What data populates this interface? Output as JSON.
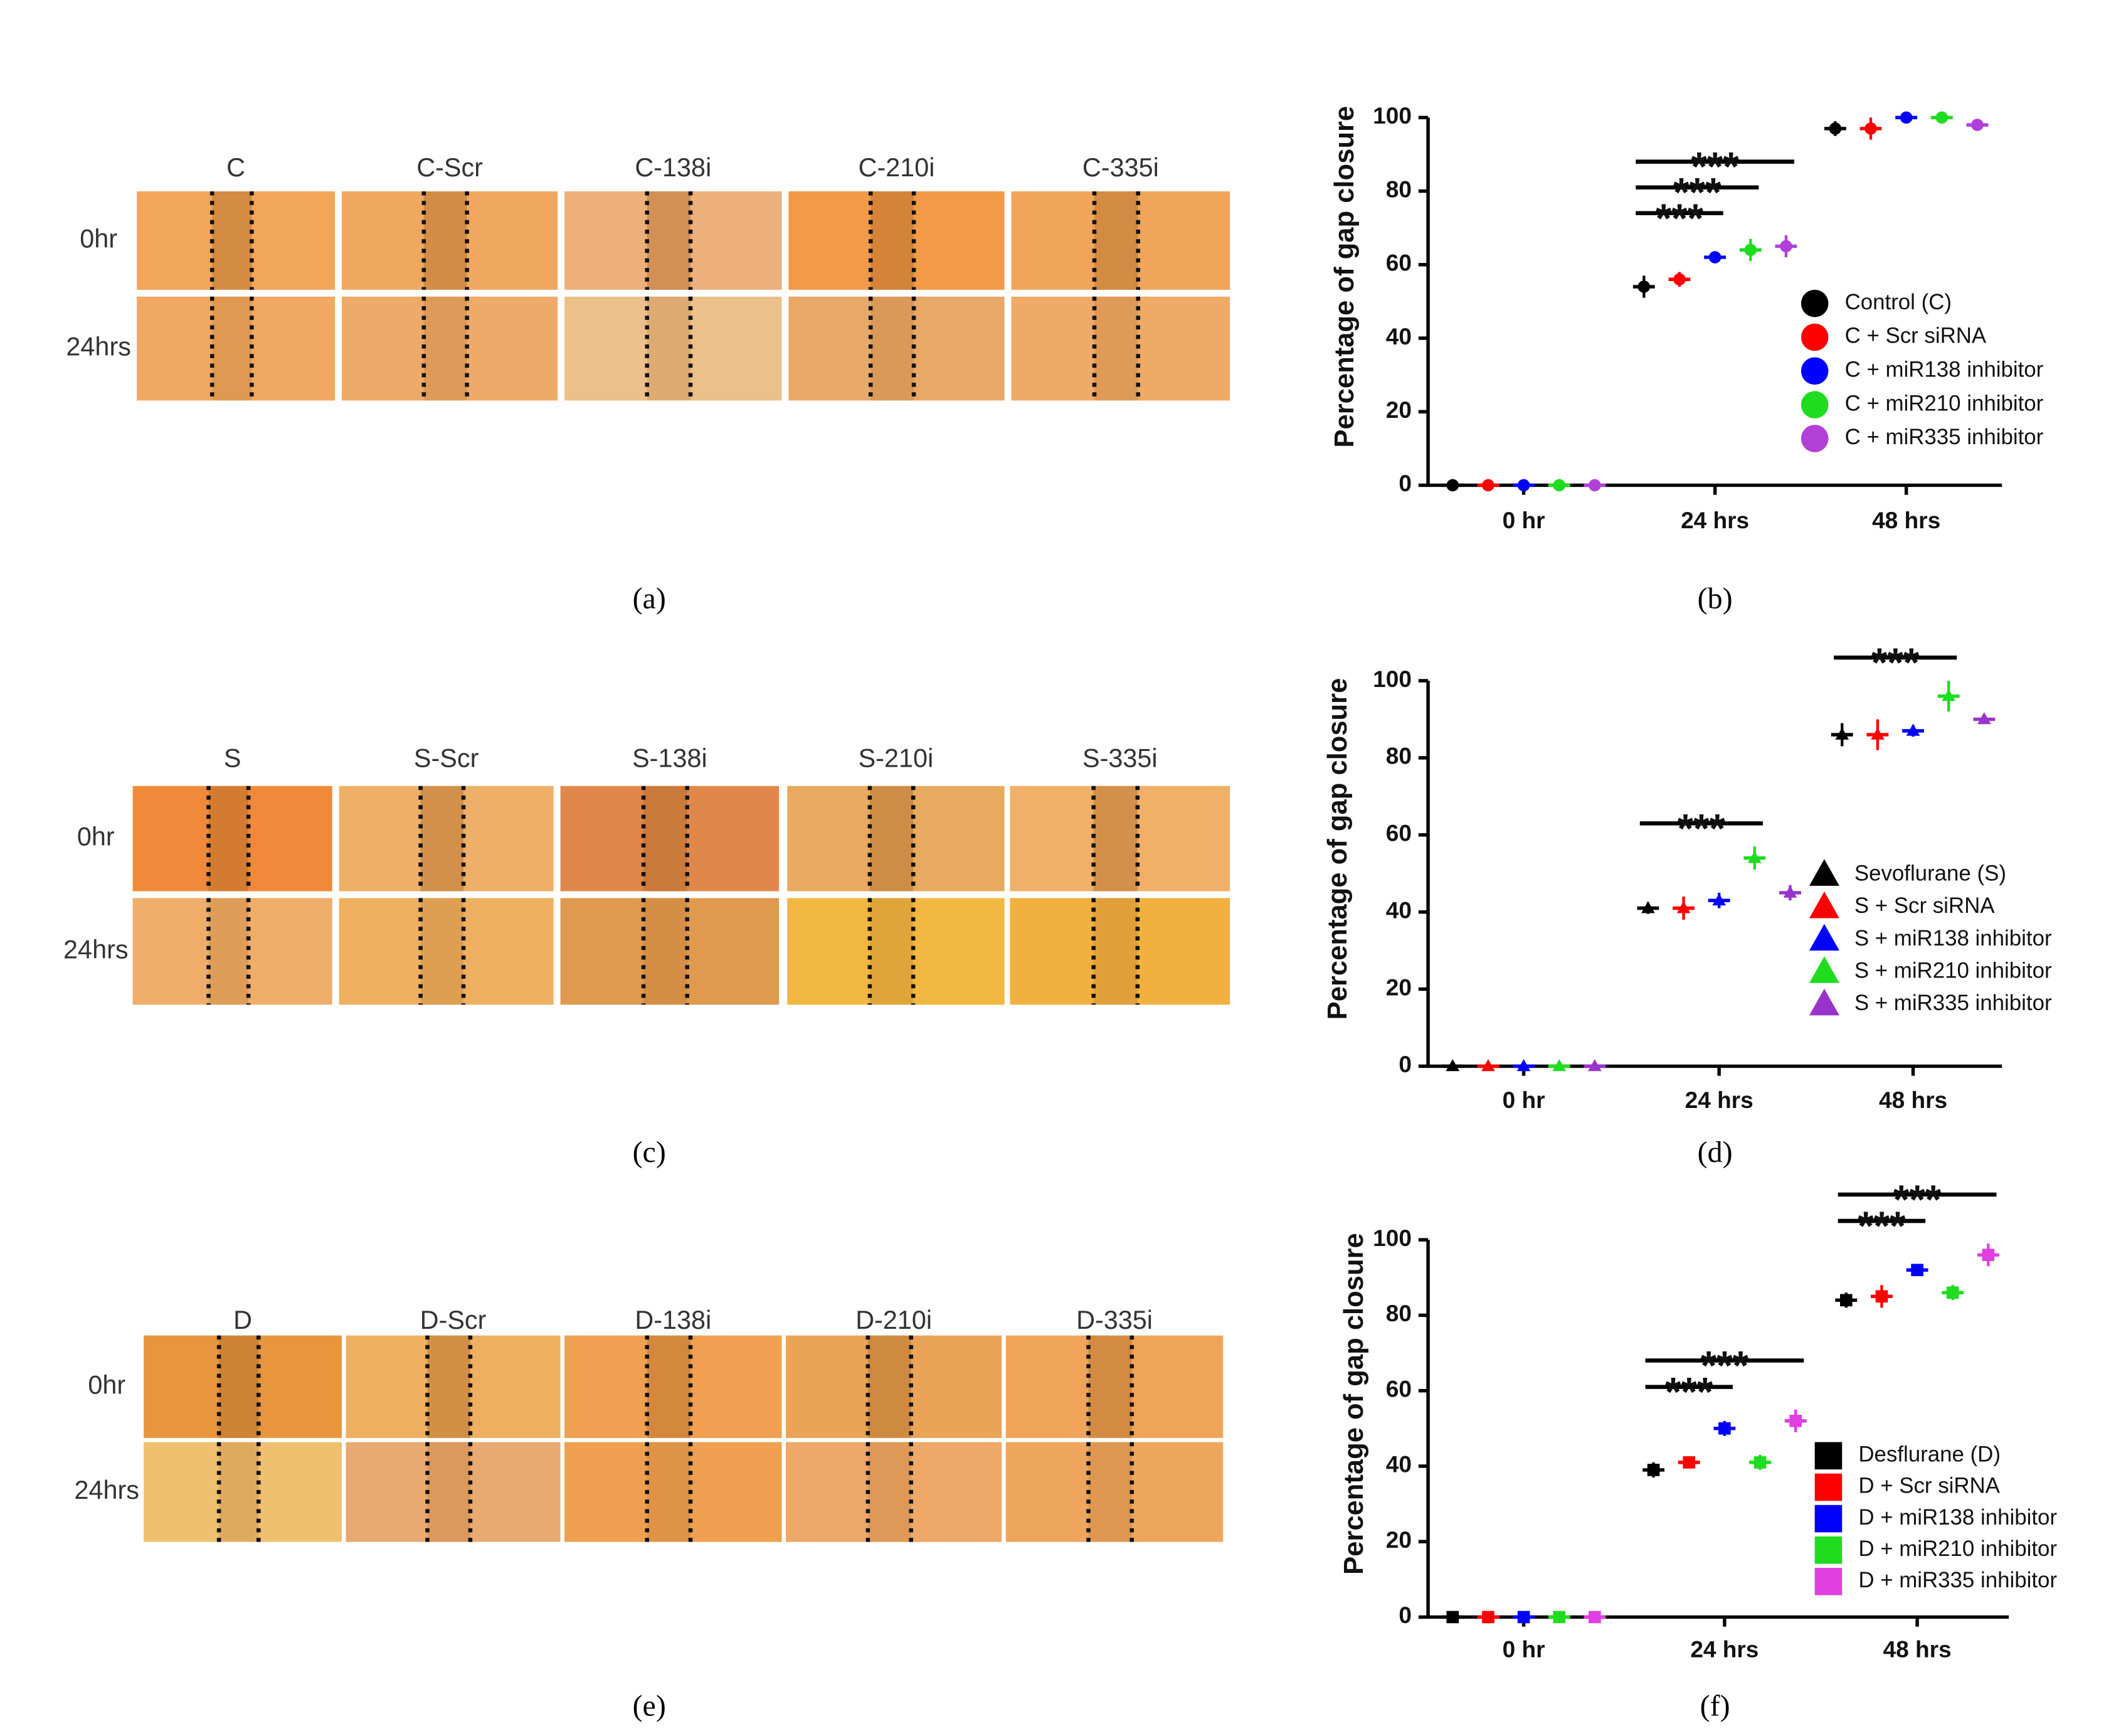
{
  "image_panels": [
    {
      "panel_label": "(a)",
      "columns": [
        "C",
        "C-Scr",
        "C-138i",
        "C-210i",
        "C-335i"
      ],
      "rows": [
        "0hr",
        "24hrs"
      ]
    },
    {
      "panel_label": "(c)",
      "columns": [
        "S",
        "S-Scr",
        "S-138i",
        "S-210i",
        "S-335i"
      ],
      "rows": [
        "0hr",
        "24hrs"
      ]
    },
    {
      "panel_label": "(e)",
      "columns": [
        "D",
        "D-Scr",
        "D-138i",
        "D-210i",
        "D-335i"
      ],
      "rows": [
        "0hr",
        "24hrs"
      ]
    }
  ],
  "chart_data": [
    {
      "type": "scatter",
      "panel_label": "(b)",
      "marker": "circle",
      "y_label": "Percentage of gap closure",
      "categories": [
        "0 hr",
        "24 hrs",
        "48 hrs"
      ],
      "ylim": [
        0,
        100
      ],
      "yticks": [
        0,
        20,
        40,
        60,
        80,
        100
      ],
      "series": [
        {
          "name": "Control (C)",
          "color": "#000000",
          "values": [
            0,
            54,
            97
          ],
          "errors": [
            0,
            3,
            2
          ]
        },
        {
          "name": "C + Scr siRNA",
          "color": "#ff0000",
          "values": [
            0,
            56,
            97
          ],
          "errors": [
            0,
            2,
            3
          ]
        },
        {
          "name": "C + miR138  inhibitor",
          "color": "#0000ff",
          "values": [
            0,
            62,
            100
          ],
          "errors": [
            0,
            1,
            0.5
          ]
        },
        {
          "name": "C + miR210  inhibitor",
          "color": "#1fdc1f",
          "values": [
            0,
            64,
            100
          ],
          "errors": [
            0,
            3,
            0.5
          ]
        },
        {
          "name": "C + miR335  inhibitor",
          "color": "#b040d8",
          "values": [
            0,
            65,
            98
          ],
          "errors": [
            0,
            3,
            1.5
          ]
        }
      ],
      "annotations": [
        {
          "text": "***",
          "category": "24 hrs",
          "from": "Control (C)",
          "to": "C + miR138  inhibitor"
        },
        {
          "text": "***",
          "category": "24 hrs",
          "from": "Control (C)",
          "to": "C + miR210  inhibitor"
        },
        {
          "text": "***",
          "category": "24 hrs",
          "from": "Control (C)",
          "to": "C + miR335  inhibitor"
        }
      ]
    },
    {
      "type": "scatter",
      "panel_label": "(d)",
      "marker": "triangle",
      "y_label": "Percentage of gap closure",
      "categories": [
        "0 hr",
        "24 hrs",
        "48 hrs"
      ],
      "ylim": [
        0,
        100
      ],
      "yticks": [
        0,
        20,
        40,
        60,
        80,
        100
      ],
      "series": [
        {
          "name": "Sevoflurane (S)",
          "color": "#000000",
          "values": [
            0,
            41,
            86
          ],
          "errors": [
            0,
            1.5,
            3
          ]
        },
        {
          "name": "S + Scr siRNA",
          "color": "#ff0000",
          "values": [
            0,
            41,
            86
          ],
          "errors": [
            0,
            3,
            4
          ]
        },
        {
          "name": "S + miR138  inhibitor",
          "color": "#0000ff",
          "values": [
            0,
            43,
            87
          ],
          "errors": [
            0,
            2,
            1.5
          ]
        },
        {
          "name": "S + miR210  inhibitor",
          "color": "#1fdc1f",
          "values": [
            0,
            54,
            96
          ],
          "errors": [
            0,
            3,
            4
          ]
        },
        {
          "name": "S + miR335  inhibitor",
          "color": "#9933cc",
          "values": [
            0,
            45,
            90
          ],
          "errors": [
            0,
            2,
            1
          ]
        }
      ],
      "annotations": [
        {
          "text": "***",
          "category": "24 hrs",
          "from": "Sevoflurane (S)",
          "to": "S + miR210  inhibitor"
        },
        {
          "text": "***",
          "category": "48 hrs",
          "from": "Sevoflurane (S)",
          "to": "S + miR210  inhibitor"
        }
      ]
    },
    {
      "type": "scatter",
      "panel_label": "(f)",
      "marker": "square",
      "y_label": "Percentage of gap closure",
      "categories": [
        "0 hr",
        "24 hrs",
        "48 hrs"
      ],
      "ylim": [
        0,
        100
      ],
      "yticks": [
        0,
        20,
        40,
        60,
        80,
        100
      ],
      "series": [
        {
          "name": "Desflurane (D)",
          "color": "#000000",
          "values": [
            0,
            39,
            84
          ],
          "errors": [
            0,
            2,
            2
          ]
        },
        {
          "name": "D + Scr siRNA",
          "color": "#ff0000",
          "values": [
            0,
            41,
            85
          ],
          "errors": [
            0,
            1,
            3
          ]
        },
        {
          "name": "D + miR138  inhibitor",
          "color": "#0000ff",
          "values": [
            0,
            50,
            92
          ],
          "errors": [
            0,
            2,
            1
          ]
        },
        {
          "name": "D + miR210  inhibitor",
          "color": "#1fdc1f",
          "values": [
            0,
            41,
            86
          ],
          "errors": [
            0,
            2,
            2
          ]
        },
        {
          "name": "D + miR335  inhibitor",
          "color": "#e040e0",
          "values": [
            0,
            52,
            96
          ],
          "errors": [
            0,
            3,
            3
          ]
        }
      ],
      "annotations": [
        {
          "text": "***",
          "category": "24 hrs",
          "from": "Desflurane (D)",
          "to": "D + miR138  inhibitor"
        },
        {
          "text": "***",
          "category": "24 hrs",
          "from": "Desflurane (D)",
          "to": "D + miR335  inhibitor"
        },
        {
          "text": "***",
          "category": "48 hrs",
          "from": "Desflurane (D)",
          "to": "D + miR138  inhibitor"
        },
        {
          "text": "***",
          "category": "48 hrs",
          "from": "Desflurane (D)",
          "to": "D + miR335  inhibitor"
        }
      ]
    }
  ]
}
